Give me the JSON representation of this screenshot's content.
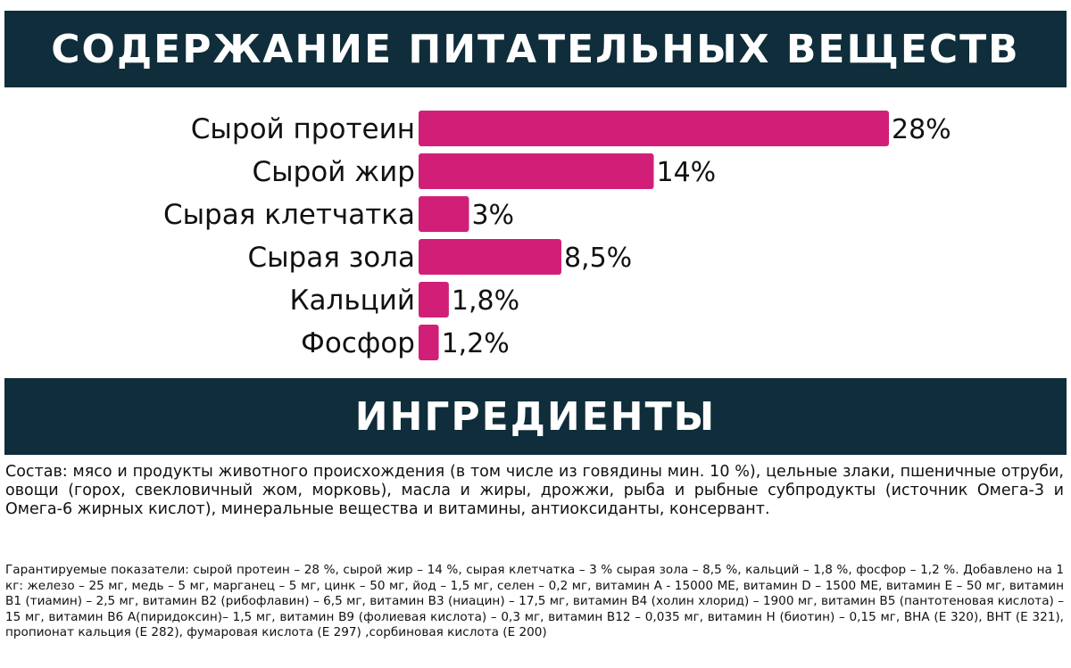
{
  "header": {
    "title": "СОДЕРЖАНИЕ ПИТАТЕЛЬНЫХ ВЕЩЕСТВ"
  },
  "section": {
    "title": "ИНГРЕДИЕНТЫ"
  },
  "colors": {
    "banner": "#0f2d3a",
    "bar": "#d11f78"
  },
  "chart_data": {
    "type": "bar",
    "orientation": "horizontal",
    "categories": [
      "Сырой протеин",
      "Сырой жир",
      "Сырая клетчатка",
      "Сырая зола",
      "Кальций",
      "Фосфор"
    ],
    "values": [
      28,
      14,
      3,
      8.5,
      1.8,
      1.2
    ],
    "value_labels": [
      "28%",
      "14%",
      "3%",
      "8,5%",
      "1,8%",
      "1,2%"
    ],
    "unit": "%",
    "xlim": [
      0,
      28
    ],
    "grid": false,
    "legend": "none"
  },
  "ingredients": {
    "composition": "Состав: мясо и продукты животного происхождения (в том числе из говядины мин. 10 %), цельные злаки, пшеничные отруби, овощи (горох, свекловичный жом, морковь), масла и жиры, дрожжи, рыба и рыбные субпродукты (источник Омега-3 и Омега-6 жирных кислот), минеральные вещества и витамины, антиоксиданты, консервант.",
    "guarantees": "Гарантируемые показатели: сырой протеин – 28 %, сырой жир – 14 %, сырая клетчатка – 3 % сырая зола – 8,5 %, кальций – 1,8 %, фосфор – 1,2 %. Добавлено на 1 кг: железо – 25 мг, медь – 5 мг, марганец – 5 мг, цинк – 50 мг, йод – 1,5 мг, селен – 0,2 мг, витамин А - 15000 МЕ, витамин D – 1500 МЕ, витамин Е – 50 мг, витамин В1 (тиамин) – 2,5 мг, витамин В2 (рибофлавин) – 6,5 мг, витамин В3 (ниацин) – 17,5 мг, витамин В4 (холин хлорид) – 1900 мг, витамин В5 (пантотеновая кислота) – 15 мг, витамин В6 А(пиридоксин)– 1,5 мг, витамин В9 (фолиевая кислота) – 0,3 мг, витамин В12 – 0,035 мг, витамин Н (биотин) – 0,15 мг, ВНА (Е 320), ВНТ (Е 321), пропионат кальция (Е 282), фумаровая кислота (Е 297) ,сорбиновая кислота (Е 200)"
  }
}
